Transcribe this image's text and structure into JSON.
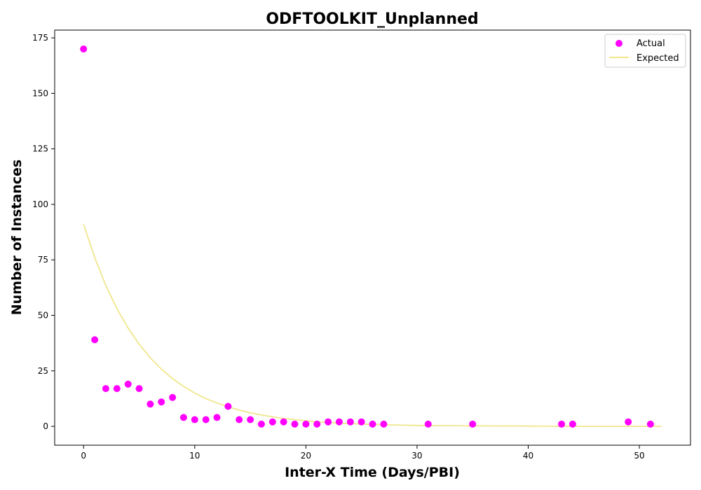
{
  "chart_data": {
    "type": "scatter",
    "title": "ODFTOOLKIT_Unplanned",
    "xlabel": "Inter-X Time (Days/PBI)",
    "ylabel": "Number of Instances",
    "xlim": [
      -2.6,
      54.6
    ],
    "ylim": [
      -8.5,
      178.5
    ],
    "x_ticks": [
      0,
      10,
      20,
      30,
      40,
      50
    ],
    "y_ticks": [
      0,
      25,
      50,
      75,
      100,
      125,
      150,
      175
    ],
    "grid": false,
    "legend_position": "top-right",
    "series": [
      {
        "name": "Actual",
        "kind": "scatter",
        "color": "#ff00ff",
        "points": [
          [
            0,
            170
          ],
          [
            1,
            39
          ],
          [
            2,
            17
          ],
          [
            3,
            17
          ],
          [
            4,
            19
          ],
          [
            5,
            17
          ],
          [
            6,
            10
          ],
          [
            7,
            11
          ],
          [
            8,
            13
          ],
          [
            9,
            4
          ],
          [
            10,
            3
          ],
          [
            11,
            3
          ],
          [
            12,
            4
          ],
          [
            13,
            9
          ],
          [
            14,
            3
          ],
          [
            15,
            3
          ],
          [
            16,
            1
          ],
          [
            17,
            2
          ],
          [
            18,
            2
          ],
          [
            19,
            1
          ],
          [
            20,
            1
          ],
          [
            21,
            1
          ],
          [
            22,
            2
          ],
          [
            23,
            2
          ],
          [
            24,
            2
          ],
          [
            25,
            2
          ],
          [
            26,
            1
          ],
          [
            27,
            1
          ],
          [
            31,
            1
          ],
          [
            35,
            1
          ],
          [
            43,
            1
          ],
          [
            44,
            1
          ],
          [
            49,
            2
          ],
          [
            51,
            1
          ]
        ]
      },
      {
        "name": "Expected",
        "kind": "line",
        "color": "#f0e68c",
        "points": [
          [
            0,
            91.0
          ],
          [
            1,
            76.0
          ],
          [
            2,
            63.5
          ],
          [
            3,
            53.0
          ],
          [
            4,
            44.3
          ],
          [
            5,
            37.0
          ],
          [
            6,
            30.9
          ],
          [
            7,
            25.8
          ],
          [
            8,
            21.5
          ],
          [
            9,
            18.0
          ],
          [
            10,
            15.0
          ],
          [
            11,
            12.5
          ],
          [
            12,
            10.5
          ],
          [
            13,
            8.8
          ],
          [
            14,
            7.3
          ],
          [
            15,
            6.1
          ],
          [
            16,
            5.1
          ],
          [
            17,
            4.3
          ],
          [
            18,
            3.5
          ],
          [
            19,
            3.0
          ],
          [
            20,
            2.5
          ],
          [
            22,
            1.7
          ],
          [
            24,
            1.2
          ],
          [
            26,
            0.8
          ],
          [
            28,
            0.6
          ],
          [
            30,
            0.4
          ],
          [
            32,
            0.3
          ],
          [
            35,
            0.2
          ],
          [
            40,
            0.1
          ],
          [
            45,
            0.0
          ],
          [
            52,
            0.0
          ]
        ]
      }
    ]
  }
}
